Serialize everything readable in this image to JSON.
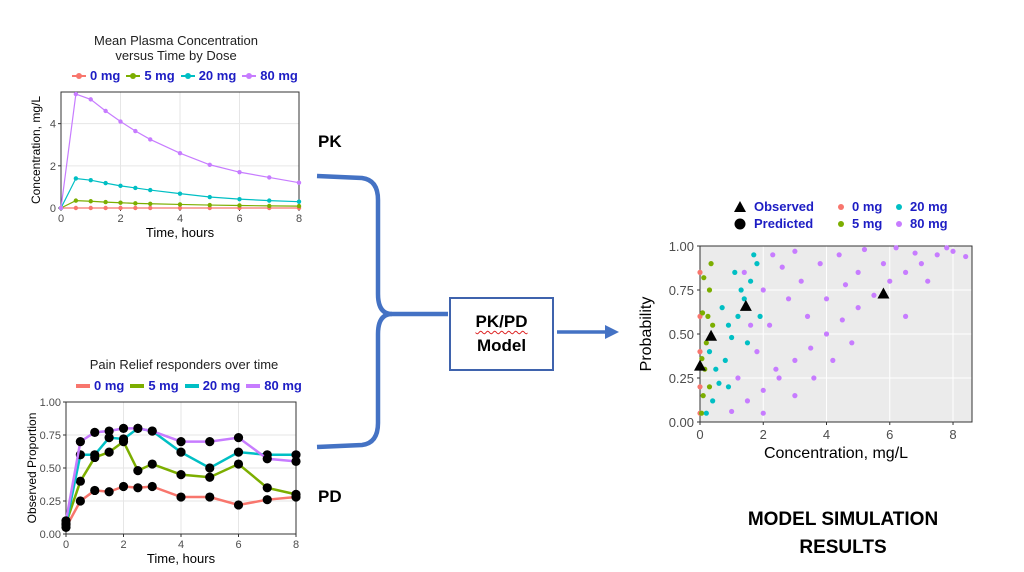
{
  "labels": {
    "pk": "PK",
    "pd": "PD",
    "model_line1": "PK/PD",
    "model_line2": "Model",
    "results_line1": "MODEL SIMULATION",
    "results_line2": "RESULTS"
  },
  "colors": {
    "dose_0": "#f8766d",
    "dose_5": "#7cae00",
    "dose_20": "#00bfc4",
    "dose_80": "#c77cff",
    "legend_text": "#1d1dc4",
    "arrow": "#4472c4"
  },
  "icons": [
    "left-brace-arrow",
    "right-arrow",
    "triangle-marker",
    "circle-marker"
  ],
  "chart_data": [
    {
      "type": "line",
      "title_line1": "Mean Plasma Concentration",
      "title_line2": "versus Time by Dose",
      "xlabel": "Time, hours",
      "ylabel": "Concentration, mg/L",
      "xlim": [
        0,
        8
      ],
      "ylim": [
        0,
        5.5
      ],
      "xticks": [
        0,
        2,
        4,
        6,
        8
      ],
      "yticks": [
        0,
        2,
        4
      ],
      "grid": true,
      "legend_position": "top",
      "x": [
        0,
        0.5,
        1,
        1.5,
        2,
        2.5,
        3,
        4,
        5,
        6,
        7,
        8
      ],
      "series": [
        {
          "name": "0 mg",
          "values": [
            0,
            0,
            0,
            0,
            0,
            0,
            0,
            0,
            0,
            0,
            0,
            0
          ]
        },
        {
          "name": "5 mg",
          "values": [
            0,
            0.35,
            0.32,
            0.28,
            0.25,
            0.22,
            0.2,
            0.17,
            0.14,
            0.12,
            0.1,
            0.09
          ]
        },
        {
          "name": "20 mg",
          "values": [
            0,
            1.4,
            1.32,
            1.18,
            1.05,
            0.95,
            0.85,
            0.68,
            0.52,
            0.42,
            0.35,
            0.3
          ]
        },
        {
          "name": "80 mg",
          "values": [
            0,
            5.4,
            5.15,
            4.6,
            4.1,
            3.65,
            3.25,
            2.6,
            2.05,
            1.7,
            1.45,
            1.2
          ]
        }
      ]
    },
    {
      "type": "line",
      "title": "Pain Relief responders over time",
      "xlabel": "Time, hours",
      "ylabel": "Observed Proportion",
      "xlim": [
        0,
        8
      ],
      "ylim": [
        0,
        1
      ],
      "xticks": [
        0,
        2,
        4,
        6,
        8
      ],
      "yticks": [
        "0.00",
        "0.25",
        "0.50",
        "0.75",
        "1.00"
      ],
      "grid": true,
      "legend_position": "top",
      "x": [
        0,
        0.5,
        1,
        1.5,
        2,
        2.5,
        3,
        4,
        5,
        6,
        7,
        8
      ],
      "series": [
        {
          "name": "0 mg",
          "values": [
            0.05,
            0.25,
            0.33,
            0.32,
            0.36,
            0.35,
            0.36,
            0.28,
            0.28,
            0.22,
            0.26,
            0.28
          ]
        },
        {
          "name": "5 mg",
          "values": [
            0.08,
            0.4,
            0.58,
            0.62,
            0.7,
            0.48,
            0.53,
            0.45,
            0.43,
            0.53,
            0.35,
            0.3
          ]
        },
        {
          "name": "20 mg",
          "values": [
            0.07,
            0.6,
            0.6,
            0.73,
            0.72,
            0.8,
            0.78,
            0.62,
            0.5,
            0.62,
            0.6,
            0.6
          ]
        },
        {
          "name": "80 mg",
          "values": [
            0.1,
            0.7,
            0.77,
            0.78,
            0.8,
            0.8,
            0.78,
            0.7,
            0.7,
            0.73,
            0.57,
            0.55
          ]
        }
      ]
    },
    {
      "type": "scatter",
      "xlabel": "Concentration, mg/L",
      "ylabel": "Probability",
      "xlim": [
        0,
        8.6
      ],
      "ylim": [
        0,
        1
      ],
      "xticks": [
        0,
        2,
        4,
        6,
        8
      ],
      "yticks": [
        "0.00",
        "0.25",
        "0.50",
        "0.75",
        "1.00"
      ],
      "grid": true,
      "background": "#ebebeb",
      "legend_position": "top",
      "legend_shape": [
        {
          "name": "Observed",
          "shape": "triangle"
        },
        {
          "name": "Predicted",
          "shape": "circle"
        }
      ],
      "legend_dose": [
        {
          "name": "0 mg"
        },
        {
          "name": "5 mg"
        },
        {
          "name": "20 mg"
        },
        {
          "name": "80 mg"
        }
      ],
      "observed": [
        {
          "x": 0.0,
          "y": 0.32
        },
        {
          "x": 0.35,
          "y": 0.49
        },
        {
          "x": 1.45,
          "y": 0.66
        },
        {
          "x": 5.8,
          "y": 0.73
        }
      ],
      "predicted_series": [
        {
          "name": "0 mg",
          "points": [
            [
              0,
              0.05
            ],
            [
              0,
              0.2
            ],
            [
              0,
              0.4
            ],
            [
              0,
              0.6
            ],
            [
              0,
              0.85
            ]
          ]
        },
        {
          "name": "5 mg",
          "points": [
            [
              0.05,
              0.05
            ],
            [
              0.1,
              0.15
            ],
            [
              0.15,
              0.3
            ],
            [
              0.2,
              0.45
            ],
            [
              0.25,
              0.6
            ],
            [
              0.3,
              0.75
            ],
            [
              0.35,
              0.9
            ],
            [
              0.12,
              0.82
            ],
            [
              0.08,
              0.62
            ],
            [
              0.06,
              0.36
            ],
            [
              0.3,
              0.2
            ],
            [
              0.4,
              0.55
            ]
          ]
        },
        {
          "name": "20 mg",
          "points": [
            [
              0.2,
              0.05
            ],
            [
              0.4,
              0.12
            ],
            [
              0.6,
              0.22
            ],
            [
              0.8,
              0.35
            ],
            [
              1.0,
              0.48
            ],
            [
              1.2,
              0.6
            ],
            [
              1.4,
              0.7
            ],
            [
              1.6,
              0.8
            ],
            [
              1.8,
              0.9
            ],
            [
              0.5,
              0.3
            ],
            [
              0.9,
              0.55
            ],
            [
              1.3,
              0.75
            ],
            [
              0.7,
              0.65
            ],
            [
              1.1,
              0.85
            ],
            [
              0.3,
              0.4
            ],
            [
              1.5,
              0.45
            ],
            [
              1.9,
              0.6
            ],
            [
              0.9,
              0.2
            ],
            [
              1.7,
              0.95
            ]
          ]
        },
        {
          "name": "80 mg",
          "points": [
            [
              1.0,
              0.06
            ],
            [
              1.5,
              0.12
            ],
            [
              2.0,
              0.18
            ],
            [
              2.5,
              0.25
            ],
            [
              3.0,
              0.35
            ],
            [
              3.5,
              0.42
            ],
            [
              4.0,
              0.5
            ],
            [
              4.5,
              0.58
            ],
            [
              5.0,
              0.65
            ],
            [
              5.5,
              0.72
            ],
            [
              6.0,
              0.8
            ],
            [
              6.5,
              0.85
            ],
            [
              7.0,
              0.9
            ],
            [
              7.5,
              0.95
            ],
            [
              8.0,
              0.97
            ],
            [
              8.4,
              0.94
            ],
            [
              1.8,
              0.4
            ],
            [
              2.2,
              0.55
            ],
            [
              2.8,
              0.7
            ],
            [
              3.2,
              0.8
            ],
            [
              3.8,
              0.9
            ],
            [
              4.4,
              0.95
            ],
            [
              5.2,
              0.98
            ],
            [
              6.2,
              0.99
            ],
            [
              2.4,
              0.3
            ],
            [
              3.0,
              0.15
            ],
            [
              3.6,
              0.25
            ],
            [
              4.2,
              0.35
            ],
            [
              4.8,
              0.45
            ],
            [
              1.2,
              0.25
            ],
            [
              1.6,
              0.55
            ],
            [
              2.0,
              0.75
            ],
            [
              2.6,
              0.88
            ],
            [
              3.4,
              0.6
            ],
            [
              4.6,
              0.78
            ],
            [
              5.8,
              0.9
            ],
            [
              6.8,
              0.96
            ],
            [
              7.8,
              0.99
            ],
            [
              2.0,
              0.05
            ],
            [
              4.0,
              0.7
            ],
            [
              1.4,
              0.85
            ],
            [
              2.3,
              0.95
            ],
            [
              3.0,
              0.97
            ],
            [
              5.0,
              0.85
            ],
            [
              6.5,
              0.6
            ],
            [
              7.2,
              0.8
            ]
          ]
        }
      ]
    }
  ]
}
